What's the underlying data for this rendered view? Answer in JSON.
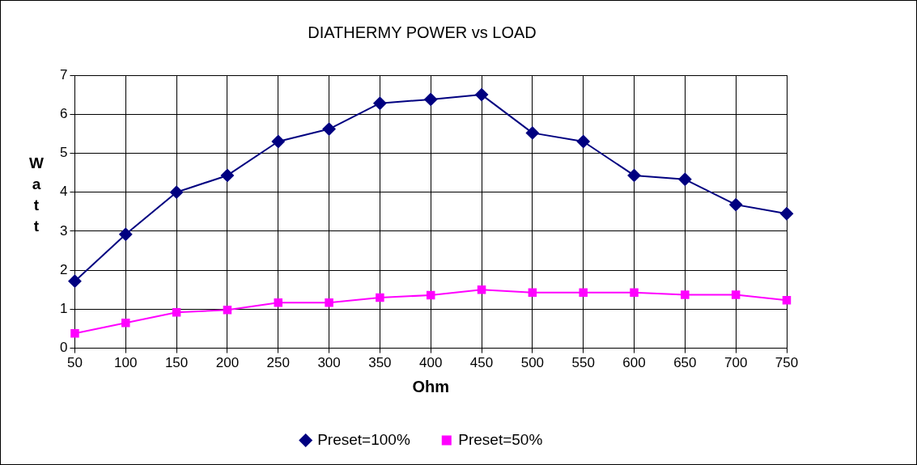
{
  "chart_data": {
    "type": "line",
    "title": "DIATHERMY POWER vs LOAD",
    "xlabel": "Ohm",
    "ylabel": "Watt",
    "x": [
      50,
      100,
      150,
      200,
      250,
      300,
      350,
      400,
      450,
      500,
      550,
      600,
      650,
      700,
      750
    ],
    "xlim": [
      50,
      750
    ],
    "xticks": [
      50,
      100,
      150,
      200,
      250,
      300,
      350,
      400,
      450,
      500,
      550,
      600,
      650,
      700,
      750
    ],
    "ylim": [
      0,
      7
    ],
    "yticks": [
      0,
      1,
      2,
      3,
      4,
      5,
      6,
      7
    ],
    "grid": true,
    "legend": "bottom",
    "line_style": "solid",
    "series": [
      {
        "name": "Preset=100%",
        "color": "#000080",
        "marker": "diamond",
        "values": [
          1.72,
          2.92,
          4.0,
          4.43,
          5.3,
          5.62,
          6.28,
          6.38,
          6.5,
          5.52,
          5.3,
          4.43,
          4.33,
          3.68,
          3.45
        ]
      },
      {
        "name": "Preset=50%",
        "color": "#ff00ff",
        "marker": "square",
        "values": [
          0.38,
          0.65,
          0.92,
          0.98,
          1.17,
          1.17,
          1.3,
          1.36,
          1.5,
          1.43,
          1.43,
          1.43,
          1.37,
          1.37,
          1.23
        ]
      }
    ]
  }
}
